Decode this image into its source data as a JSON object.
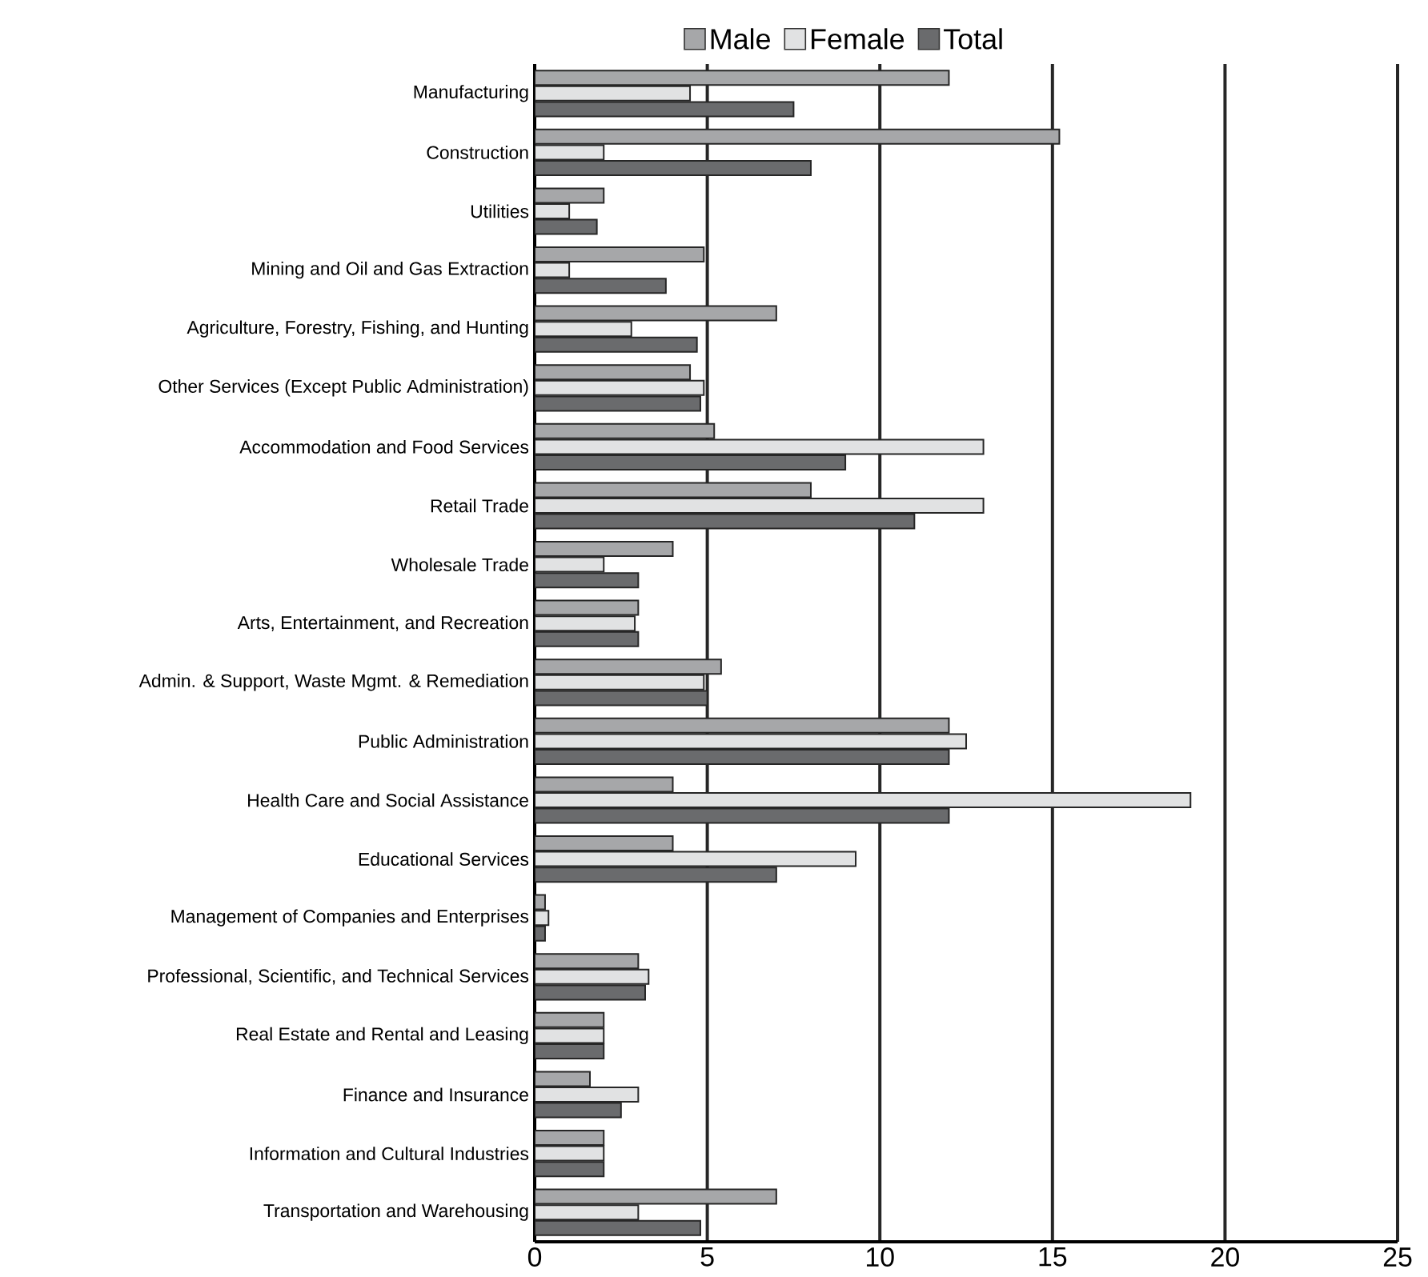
{
  "chart_data": {
    "type": "bar",
    "orientation": "horizontal",
    "categories": [
      "Manufacturing",
      "Construction",
      "Utilities",
      "Mining and Oil and Gas Extraction",
      "Agriculture, Forestry, Fishing, and Hunting",
      "Other Services (Except Public Administration)",
      "Accommodation and Food Services",
      "Retail Trade",
      "Wholesale Trade",
      "Arts, Entertainment, and Recreation",
      "Admin. & Support, Waste Mgmt. & Remediation",
      "Public Administration",
      "Health Care and Social Assistance",
      "Educational Services",
      "Management of Companies and Enterprises",
      "Professional, Scientific, and Technical Services",
      "Real Estate and Rental and Leasing",
      "Finance and Insurance",
      "Information and Cultural Industries",
      "Transportation and Warehousing"
    ],
    "series": [
      {
        "name": "Male",
        "color": "#a6a7a9",
        "values": [
          12,
          15.2,
          2,
          4.9,
          7,
          4.5,
          5.2,
          8,
          4,
          3,
          5.4,
          12,
          4,
          4,
          0.3,
          3,
          2,
          1.6,
          2,
          7
        ]
      },
      {
        "name": "Female",
        "color": "#e1e2e3",
        "values": [
          4.5,
          2,
          1,
          1,
          2.8,
          4.9,
          13,
          13,
          2,
          2.9,
          4.9,
          12.5,
          19,
          9.3,
          0.4,
          3.3,
          2,
          3,
          2,
          3
        ]
      },
      {
        "name": "Total",
        "color": "#6a6b6d",
        "values": [
          7.5,
          8,
          1.8,
          3.8,
          4.7,
          4.8,
          9,
          11,
          3,
          3,
          5,
          12,
          12,
          7,
          0.3,
          3.2,
          2,
          2.5,
          2,
          4.8
        ]
      }
    ],
    "xlim": [
      0,
      25
    ],
    "xticks": [
      0,
      5,
      10,
      15,
      20,
      25
    ],
    "grid": "x",
    "legend": "top"
  }
}
